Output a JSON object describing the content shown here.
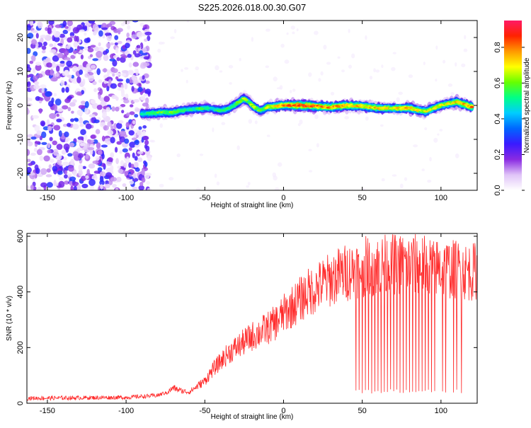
{
  "title": "S225.2026.018.00.30.G07",
  "chart_data": [
    {
      "type": "heatmap",
      "name": "spectrogram",
      "xlabel": "Height of straight line (km)",
      "ylabel": "Frequency (Hz)",
      "xlim": [
        -163,
        123
      ],
      "ylim": [
        -25,
        25
      ],
      "xticks": [
        -150,
        -100,
        -50,
        0,
        50,
        100
      ],
      "yticks": [
        20,
        10,
        0,
        -10,
        -20
      ],
      "colorbar": {
        "label": "Normalized spectral amplitude",
        "range": [
          0,
          0.95
        ],
        "ticks": [
          "0.0",
          "0.2",
          "0.4",
          "0.6",
          "0.8"
        ],
        "colormap": [
          "#ffffff",
          "#e0c4f8",
          "#8a2be2",
          "#3a1aff",
          "#0066ff",
          "#00ccff",
          "#00ff88",
          "#66ff00",
          "#ffff00",
          "#ff9900",
          "#ff2200",
          "#ff1a66"
        ]
      },
      "ridge": {
        "x": [
          -90,
          -80,
          -70,
          -60,
          -50,
          -45,
          -40,
          -35,
          -30,
          -25,
          -22,
          -20,
          -15,
          -10,
          0,
          10,
          20,
          30,
          40,
          50,
          60,
          70,
          80,
          90,
          100,
          110,
          120
        ],
        "freq": [
          -2.5,
          -2.2,
          -2.0,
          -1.2,
          -0.8,
          -1.0,
          -1.5,
          -1.0,
          0.5,
          2.0,
          1.0,
          0.0,
          -1.5,
          -0.5,
          0.0,
          0.0,
          -0.2,
          -0.5,
          0.0,
          -0.2,
          -0.8,
          -0.8,
          -0.8,
          -1.8,
          0.0,
          1.0,
          -0.5
        ],
        "amplitude": [
          0.55,
          0.6,
          0.65,
          0.55,
          0.6,
          0.5,
          0.6,
          0.55,
          0.6,
          0.7,
          0.55,
          0.7,
          0.6,
          0.7,
          0.8,
          0.92,
          0.85,
          0.8,
          0.82,
          0.75,
          0.78,
          0.72,
          0.8,
          0.7,
          0.7,
          0.75,
          0.85
        ]
      },
      "noise_region_x": [
        -163,
        -90
      ],
      "noise_amplitude_max": 0.3
    },
    {
      "type": "line",
      "name": "snr",
      "xlabel": "Height of straight line (km)",
      "ylabel": "SNR (10 * v/v)",
      "xlim": [
        -163,
        123
      ],
      "ylim": [
        0,
        610
      ],
      "xticks": [
        -150,
        -100,
        -50,
        0,
        50,
        100
      ],
      "yticks": [
        0,
        200,
        400,
        600
      ],
      "color": "#ff2a2a",
      "trend": {
        "x": [
          -163,
          -100,
          -80,
          -75,
          -70,
          -65,
          -60,
          -55,
          -50,
          -45,
          -40,
          -35,
          -30,
          -25,
          -20,
          -15,
          -10,
          -5,
          0,
          5,
          10,
          15,
          20,
          25,
          30,
          35,
          40,
          45,
          50,
          60,
          70,
          80,
          90,
          100,
          110,
          120,
          123
        ],
        "y": [
          15,
          18,
          25,
          35,
          55,
          45,
          40,
          60,
          80,
          120,
          150,
          180,
          200,
          220,
          240,
          255,
          270,
          290,
          320,
          345,
          370,
          395,
          410,
          430,
          445,
          460,
          470,
          480,
          490,
          495,
          500,
          500,
          495,
          485,
          480,
          470,
          480
        ]
      },
      "dropouts_x": [
        46,
        48,
        50,
        52,
        54,
        56,
        58,
        60,
        62,
        64,
        66,
        68,
        70,
        72,
        74,
        76,
        78,
        80,
        82,
        84,
        86,
        88,
        90,
        92,
        94,
        96,
        101,
        103,
        108,
        110,
        113
      ],
      "dropout_level": 35,
      "noise_amplitude": 15
    }
  ]
}
